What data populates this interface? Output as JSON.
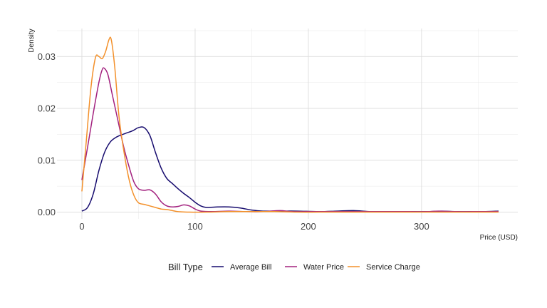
{
  "chart_data": {
    "type": "line",
    "title": "",
    "xlabel": "Price (USD)",
    "ylabel": "Density",
    "xlim": [
      -22,
      385
    ],
    "ylim": [
      -0.0013,
      0.0354
    ],
    "x_ticks": [
      0,
      100,
      200,
      300
    ],
    "x_tick_labels": [
      "0",
      "100",
      "200",
      "300"
    ],
    "y_ticks": [
      0.0,
      0.01,
      0.02,
      0.03
    ],
    "y_tick_labels": [
      "0.00",
      "0.01",
      "0.02",
      "0.03"
    ],
    "grid": true,
    "legend": {
      "title": "Bill Type",
      "position": "bottom"
    },
    "series": [
      {
        "name": "Average Bill",
        "color": "#160b6e",
        "points": [
          [
            0,
            0.0002
          ],
          [
            5,
            0.0009
          ],
          [
            10,
            0.0035
          ],
          [
            15,
            0.008
          ],
          [
            20,
            0.0115
          ],
          [
            25,
            0.0135
          ],
          [
            30,
            0.0144
          ],
          [
            35,
            0.0149
          ],
          [
            40,
            0.0153
          ],
          [
            45,
            0.0157
          ],
          [
            50,
            0.0163
          ],
          [
            55,
            0.0163
          ],
          [
            60,
            0.0148
          ],
          [
            65,
            0.0115
          ],
          [
            70,
            0.0085
          ],
          [
            75,
            0.0065
          ],
          [
            80,
            0.0055
          ],
          [
            85,
            0.0045
          ],
          [
            90,
            0.0036
          ],
          [
            95,
            0.0028
          ],
          [
            100,
            0.0019
          ],
          [
            105,
            0.0012
          ],
          [
            110,
            0.0009
          ],
          [
            120,
            0.001
          ],
          [
            130,
            0.001
          ],
          [
            140,
            0.0008
          ],
          [
            150,
            0.0004
          ],
          [
            160,
            0.0002
          ],
          [
            175,
            0.0002
          ],
          [
            190,
            0.0002
          ],
          [
            210,
            0.0001
          ],
          [
            225,
            0.0002
          ],
          [
            240,
            0.0003
          ],
          [
            255,
            0.0001
          ],
          [
            270,
            0.0001
          ],
          [
            290,
            0.0001
          ],
          [
            305,
            0.0001
          ],
          [
            318,
            0.0002
          ],
          [
            330,
            0.0001
          ],
          [
            345,
            0.0001
          ],
          [
            355,
            0.0001
          ],
          [
            368,
            0.0002
          ]
        ]
      },
      {
        "name": "Water Price",
        "color": "#a3227f",
        "points": [
          [
            0,
            0.0062
          ],
          [
            5,
            0.0125
          ],
          [
            10,
            0.019
          ],
          [
            15,
            0.025
          ],
          [
            18,
            0.0275
          ],
          [
            20,
            0.0277
          ],
          [
            23,
            0.0265
          ],
          [
            27,
            0.0225
          ],
          [
            32,
            0.0175
          ],
          [
            37,
            0.0125
          ],
          [
            42,
            0.0085
          ],
          [
            46,
            0.0058
          ],
          [
            50,
            0.0045
          ],
          [
            55,
            0.0042
          ],
          [
            60,
            0.0043
          ],
          [
            65,
            0.0035
          ],
          [
            70,
            0.002
          ],
          [
            75,
            0.0012
          ],
          [
            80,
            0.001
          ],
          [
            85,
            0.0011
          ],
          [
            90,
            0.0014
          ],
          [
            95,
            0.0012
          ],
          [
            100,
            0.0006
          ],
          [
            105,
            0.0002
          ],
          [
            115,
            0.0001
          ],
          [
            130,
            0.0002
          ],
          [
            145,
            0.0001
          ],
          [
            160,
            0.0001
          ],
          [
            175,
            0.0003
          ],
          [
            185,
            0.0001
          ],
          [
            200,
            0.0001
          ],
          [
            215,
            0.0001
          ],
          [
            230,
            0.0001
          ],
          [
            250,
            0.0001
          ],
          [
            270,
            0.0001
          ],
          [
            290,
            0.0001
          ],
          [
            305,
            0.0001
          ],
          [
            315,
            0.0002
          ],
          [
            330,
            0.0001
          ],
          [
            345,
            0.0001
          ],
          [
            355,
            0.0001
          ],
          [
            368,
            0.0001
          ]
        ]
      },
      {
        "name": "Service Charge",
        "color": "#f3902a",
        "points": [
          [
            0,
            0.004
          ],
          [
            4,
            0.014
          ],
          [
            8,
            0.024
          ],
          [
            12,
            0.0298
          ],
          [
            15,
            0.03
          ],
          [
            18,
            0.0296
          ],
          [
            21,
            0.031
          ],
          [
            24,
            0.0333
          ],
          [
            26,
            0.0332
          ],
          [
            29,
            0.028
          ],
          [
            33,
            0.018
          ],
          [
            38,
            0.0105
          ],
          [
            42,
            0.006
          ],
          [
            46,
            0.0032
          ],
          [
            50,
            0.0018
          ],
          [
            55,
            0.0015
          ],
          [
            60,
            0.0012
          ],
          [
            65,
            0.0009
          ],
          [
            70,
            0.0006
          ],
          [
            75,
            0.0005
          ],
          [
            80,
            0.0003
          ],
          [
            85,
            0.0001
          ],
          [
            95,
            0.0
          ],
          [
            110,
            0.0
          ],
          [
            130,
            0.0001
          ],
          [
            150,
            0.0001
          ],
          [
            170,
            0.0001
          ],
          [
            190,
            0.0
          ],
          [
            210,
            0.0
          ],
          [
            230,
            0.0
          ],
          [
            250,
            0.0
          ],
          [
            270,
            0.0
          ],
          [
            290,
            0.0
          ],
          [
            310,
            0.0
          ],
          [
            330,
            0.0
          ],
          [
            350,
            0.0
          ],
          [
            368,
            0.0
          ]
        ]
      }
    ]
  }
}
